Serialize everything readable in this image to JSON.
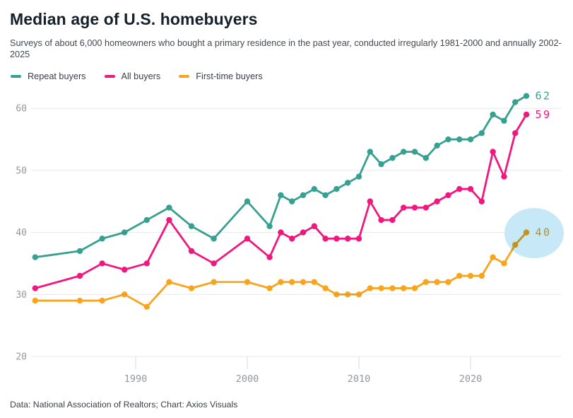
{
  "title": "Median age of U.S. homebuyers",
  "subtitle": "Surveys of about 6,000 homeowners who bought a primary residence in the past year, conducted irregularly 1981-2000 and annually 2002-2025",
  "footer": "Data: National Association of Realtors; Chart: Axios Visuals",
  "colors": {
    "grid": "#e8e8e8",
    "tick": "#d8d8d8",
    "axis_text": "#95989c",
    "highlight_circle": "#c7e8f7",
    "teal": "#36a190",
    "magenta": "#f0187f",
    "orange": "#f8a41d"
  },
  "chart_data": {
    "type": "line",
    "x": [
      1981,
      1985,
      1987,
      1989,
      1991,
      1993,
      1995,
      1997,
      2000,
      2002,
      2003,
      2004,
      2005,
      2006,
      2007,
      2008,
      2009,
      2010,
      2011,
      2012,
      2013,
      2014,
      2015,
      2016,
      2017,
      2018,
      2019,
      2020,
      2021,
      2022,
      2023,
      2024,
      2025
    ],
    "series": [
      {
        "name": "Repeat buyers",
        "color": "#36a190",
        "end_label": "62",
        "values": [
          36,
          37,
          39,
          40,
          42,
          44,
          41,
          39,
          45,
          41,
          46,
          45,
          46,
          47,
          46,
          47,
          48,
          49,
          53,
          51,
          52,
          53,
          53,
          52,
          54,
          55,
          55,
          55,
          56,
          59,
          58,
          61,
          62
        ]
      },
      {
        "name": "All buyers",
        "color": "#f0187f",
        "end_label": "59",
        "values": [
          31,
          33,
          35,
          34,
          35,
          42,
          37,
          35,
          39,
          36,
          40,
          39,
          40,
          41,
          39,
          39,
          39,
          39,
          45,
          42,
          42,
          44,
          44,
          44,
          45,
          46,
          47,
          47,
          45,
          53,
          49,
          56,
          59
        ]
      },
      {
        "name": "First-time buyers",
        "color": "#f8a41d",
        "end_label": "40",
        "end_label_color": "#ad923b",
        "values": [
          29,
          29,
          29,
          30,
          28,
          32,
          31,
          32,
          32,
          31,
          32,
          32,
          32,
          32,
          31,
          30,
          30,
          30,
          31,
          31,
          31,
          31,
          31,
          32,
          32,
          32,
          33,
          33,
          33,
          36,
          35,
          38,
          40
        ]
      }
    ],
    "yticks": [
      20,
      30,
      40,
      50,
      60
    ],
    "xticks": [
      1990,
      2000,
      2010,
      2020
    ],
    "ylim": [
      20,
      64
    ],
    "xlim": [
      1981,
      2025
    ],
    "grid": "horizontal",
    "legend_position": "top-left",
    "highlight": {
      "series": "First-time buyers",
      "year": 2025,
      "value": 40,
      "color": "#c7e8f7"
    }
  }
}
